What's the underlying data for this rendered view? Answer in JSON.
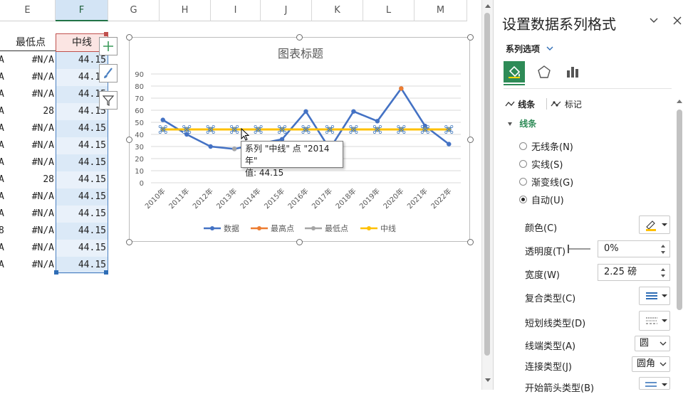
{
  "columns": [
    "E",
    "F",
    "G",
    "H",
    "I",
    "J",
    "K",
    "L",
    "M"
  ],
  "table": {
    "header_e": "最低点",
    "header_f": "中线",
    "rows": [
      {
        "a": "A",
        "e": "#N/A",
        "f": "44.15"
      },
      {
        "a": "A",
        "e": "#N/A",
        "f": "44.15"
      },
      {
        "a": "A",
        "e": "#N/A",
        "f": "44.15"
      },
      {
        "a": "A",
        "e": "28",
        "f": "44.15"
      },
      {
        "a": "A",
        "e": "#N/A",
        "f": "44.15"
      },
      {
        "a": "A",
        "e": "#N/A",
        "f": "44.15"
      },
      {
        "a": "A",
        "e": "#N/A",
        "f": "44.15"
      },
      {
        "a": "A",
        "e": "28",
        "f": "44.15"
      },
      {
        "a": "A",
        "e": "#N/A",
        "f": "44.15"
      },
      {
        "a": "A",
        "e": "#N/A",
        "f": "44.15"
      },
      {
        "a": "8",
        "e": "#N/A",
        "f": "44.15"
      },
      {
        "a": "A",
        "e": "#N/A",
        "f": "44.15"
      },
      {
        "a": "A",
        "e": "#N/A",
        "f": "44.15"
      }
    ]
  },
  "tooltip": {
    "line1": "系列 \"中线\" 点 \"2014年\"",
    "line2": "值: 44.15"
  },
  "chart_data": {
    "type": "line",
    "title": "图表标题",
    "categories": [
      "2010年",
      "2011年",
      "2012年",
      "2013年",
      "2014年",
      "2015年",
      "2016年",
      "2017年",
      "2018年",
      "2019年",
      "2020年",
      "2021年",
      "2022年"
    ],
    "ylim": [
      0,
      90
    ],
    "yticks": [
      0,
      10,
      20,
      30,
      40,
      50,
      60,
      70,
      80,
      90
    ],
    "grid": true,
    "legend_position": "bottom",
    "series": [
      {
        "name": "数据",
        "color": "#4472c4",
        "values": [
          52,
          40,
          30,
          28,
          32,
          36,
          59,
          28,
          59,
          51,
          78,
          47,
          32
        ]
      },
      {
        "name": "最高点",
        "color": "#ed7d31",
        "values": [
          null,
          null,
          null,
          null,
          null,
          null,
          null,
          null,
          null,
          null,
          78,
          null,
          null
        ]
      },
      {
        "name": "最低点",
        "color": "#a5a5a5",
        "values": [
          null,
          null,
          null,
          28,
          null,
          null,
          null,
          28,
          null,
          null,
          null,
          null,
          null
        ]
      },
      {
        "name": "中线",
        "color": "#ffc000",
        "values": [
          44.15,
          44.15,
          44.15,
          44.15,
          44.15,
          44.15,
          44.15,
          44.15,
          44.15,
          44.15,
          44.15,
          44.15,
          44.15
        ]
      }
    ]
  },
  "panel": {
    "title": "设置数据系列格式",
    "series_options": "系列选项",
    "tab_line": "线条",
    "tab_marker": "标记",
    "section_line": "线条",
    "radios": [
      {
        "label": "无线条(N)",
        "checked": false
      },
      {
        "label": "实线(S)",
        "checked": false
      },
      {
        "label": "渐变线(G)",
        "checked": false
      },
      {
        "label": "自动(U)",
        "checked": true
      }
    ],
    "color_label": "颜色(C)",
    "transparency_label": "透明度(T)",
    "transparency_value": "0%",
    "width_label": "宽度(W)",
    "width_value": "2.25 磅",
    "compound_label": "复合类型(C)",
    "dash_label": "短划线类型(D)",
    "cap_label": "线端类型(A)",
    "cap_value": "圆",
    "join_label": "连接类型(J)",
    "join_value": "圆角",
    "arrow_label": "开始箭头类型(B)"
  },
  "colors": {
    "accent_green": "#217346",
    "selection_blue": "#dbe9f7",
    "median_yellow": "#ffc000",
    "data_blue": "#4472c4"
  }
}
